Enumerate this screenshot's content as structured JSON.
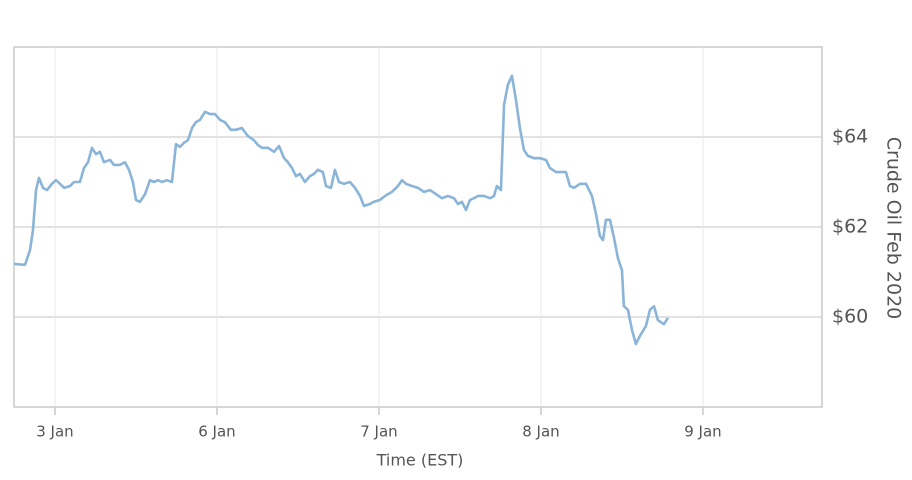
{
  "chart_data": {
    "type": "line",
    "x_label": "Time (EST)",
    "y_label": "Crude Oil Feb 2020",
    "xlim": [
      -0.253,
      4.735
    ],
    "xticks": [
      {
        "value": 0,
        "label": "3 Jan"
      },
      {
        "value": 1,
        "label": "6 Jan"
      },
      {
        "value": 2,
        "label": "7 Jan"
      },
      {
        "value": 3,
        "label": "8 Jan"
      },
      {
        "value": 4,
        "label": "9 Jan"
      }
    ],
    "ylim": [
      58,
      66
    ],
    "yticks": [
      {
        "value": 60,
        "label": "$60"
      },
      {
        "value": 62,
        "label": "$62"
      },
      {
        "value": 64,
        "label": "$64"
      }
    ],
    "grid": true,
    "x": [
      -0.253,
      -0.185,
      -0.154,
      -0.136,
      -0.117,
      -0.099,
      -0.074,
      -0.049,
      -0.019,
      0.006,
      0.031,
      0.056,
      0.093,
      0.117,
      0.154,
      0.179,
      0.204,
      0.228,
      0.253,
      0.278,
      0.302,
      0.34,
      0.364,
      0.401,
      0.432,
      0.457,
      0.481,
      0.5,
      0.525,
      0.556,
      0.586,
      0.611,
      0.636,
      0.66,
      0.691,
      0.722,
      0.747,
      0.772,
      0.796,
      0.821,
      0.846,
      0.87,
      0.895,
      0.926,
      0.957,
      0.988,
      1.019,
      1.049,
      1.086,
      1.117,
      1.154,
      1.191,
      1.228,
      1.253,
      1.278,
      1.315,
      1.352,
      1.383,
      1.414,
      1.438,
      1.463,
      1.488,
      1.512,
      1.543,
      1.574,
      1.599,
      1.623,
      1.654,
      1.673,
      1.704,
      1.728,
      1.753,
      1.784,
      1.821,
      1.852,
      1.883,
      1.907,
      1.944,
      1.969,
      2.006,
      2.037,
      2.08,
      2.117,
      2.142,
      2.167,
      2.204,
      2.241,
      2.278,
      2.315,
      2.352,
      2.389,
      2.426,
      2.463,
      2.488,
      2.512,
      2.537,
      2.562,
      2.586,
      2.611,
      2.648,
      2.685,
      2.71,
      2.728,
      2.753,
      2.772,
      2.796,
      2.821,
      2.846,
      2.87,
      2.895,
      2.92,
      2.957,
      2.994,
      3.031,
      3.056,
      3.093,
      3.117,
      3.154,
      3.179,
      3.204,
      3.241,
      3.278,
      3.315,
      3.34,
      3.364,
      3.383,
      3.401,
      3.426,
      3.451,
      3.475,
      3.5,
      3.512,
      3.537,
      3.562,
      3.586,
      3.611,
      3.648,
      3.673,
      3.698,
      3.722,
      3.759,
      3.784
    ],
    "series": [
      {
        "color": "#8ab4d8",
        "values": [
          61.18,
          61.16,
          61.49,
          61.93,
          62.82,
          63.09,
          62.87,
          62.82,
          62.96,
          63.04,
          62.96,
          62.87,
          62.91,
          63.0,
          63.0,
          63.31,
          63.44,
          63.76,
          63.62,
          63.67,
          63.44,
          63.49,
          63.38,
          63.38,
          63.44,
          63.27,
          63.0,
          62.6,
          62.56,
          62.73,
          63.04,
          63.0,
          63.04,
          63.0,
          63.04,
          63.0,
          63.84,
          63.78,
          63.87,
          63.93,
          64.2,
          64.33,
          64.38,
          64.56,
          64.51,
          64.51,
          64.38,
          64.33,
          64.16,
          64.16,
          64.2,
          64.02,
          63.93,
          63.82,
          63.76,
          63.76,
          63.67,
          63.8,
          63.53,
          63.44,
          63.31,
          63.13,
          63.18,
          63.0,
          63.13,
          63.18,
          63.27,
          63.22,
          62.91,
          62.87,
          63.27,
          63.0,
          62.96,
          63.0,
          62.87,
          62.69,
          62.47,
          62.51,
          62.56,
          62.6,
          62.69,
          62.78,
          62.91,
          63.04,
          62.96,
          62.91,
          62.87,
          62.78,
          62.82,
          62.73,
          62.64,
          62.69,
          62.64,
          62.51,
          62.56,
          62.38,
          62.6,
          62.64,
          62.69,
          62.69,
          62.64,
          62.69,
          62.91,
          62.82,
          64.71,
          65.16,
          65.36,
          64.82,
          64.2,
          63.71,
          63.58,
          63.53,
          63.53,
          63.49,
          63.31,
          63.22,
          63.22,
          63.22,
          62.91,
          62.87,
          62.96,
          62.96,
          62.69,
          62.29,
          61.8,
          61.71,
          62.16,
          62.16,
          61.76,
          61.31,
          61.04,
          60.24,
          60.16,
          59.71,
          59.4,
          59.58,
          59.8,
          60.16,
          60.24,
          59.93,
          59.84,
          59.98
        ]
      }
    ]
  }
}
